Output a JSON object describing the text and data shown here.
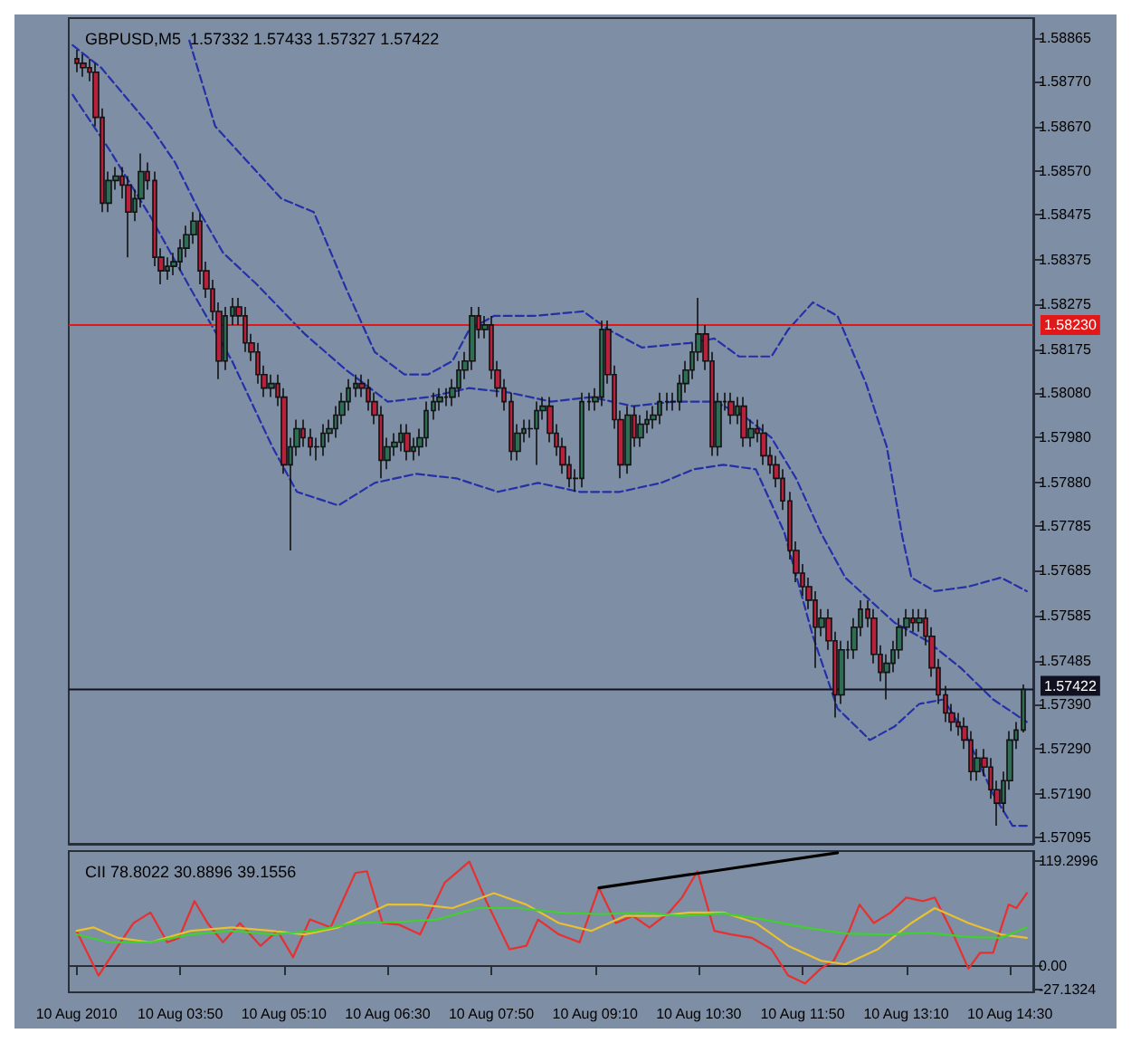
{
  "chart_data": [
    {
      "type": "candlestick",
      "title": "GBPUSD,M5  1.57332 1.57433 1.57327 1.57422",
      "x": [
        "2010-08-10T02:30",
        "2010-08-10T02:35",
        "2010-08-10T02:40",
        "2010-08-10T02:45",
        "2010-08-10T02:50",
        "2010-08-10T02:55",
        "2010-08-10T03:00",
        "2010-08-10T03:05",
        "2010-08-10T03:10",
        "2010-08-10T03:15",
        "2010-08-10T03:20",
        "2010-08-10T03:25",
        "2010-08-10T03:30",
        "2010-08-10T03:35",
        "2010-08-10T03:40",
        "2010-08-10T03:45",
        "2010-08-10T03:50",
        "2010-08-10T03:55",
        "2010-08-10T04:00",
        "2010-08-10T04:05",
        "2010-08-10T04:10",
        "2010-08-10T04:15",
        "2010-08-10T04:20",
        "2010-08-10T04:25",
        "2010-08-10T04:30",
        "2010-08-10T04:35",
        "2010-08-10T04:40",
        "2010-08-10T04:45",
        "2010-08-10T04:50",
        "2010-08-10T04:55",
        "2010-08-10T05:00",
        "2010-08-10T05:05",
        "2010-08-10T05:10",
        "2010-08-10T05:15",
        "2010-08-10T05:20",
        "2010-08-10T05:25",
        "2010-08-10T05:30",
        "2010-08-10T05:35",
        "2010-08-10T05:40",
        "2010-08-10T05:45",
        "2010-08-10T05:50",
        "2010-08-10T05:55",
        "2010-08-10T06:00",
        "2010-08-10T06:05",
        "2010-08-10T06:10",
        "2010-08-10T06:15",
        "2010-08-10T06:20",
        "2010-08-10T06:25",
        "2010-08-10T06:30",
        "2010-08-10T06:35",
        "2010-08-10T06:40",
        "2010-08-10T06:45",
        "2010-08-10T06:50",
        "2010-08-10T06:55",
        "2010-08-10T07:00",
        "2010-08-10T07:05",
        "2010-08-10T07:10",
        "2010-08-10T07:15",
        "2010-08-10T07:20",
        "2010-08-10T07:25",
        "2010-08-10T07:30",
        "2010-08-10T07:35",
        "2010-08-10T07:40",
        "2010-08-10T07:45",
        "2010-08-10T07:50",
        "2010-08-10T07:55",
        "2010-08-10T08:00",
        "2010-08-10T08:05",
        "2010-08-10T08:10",
        "2010-08-10T08:15",
        "2010-08-10T08:20",
        "2010-08-10T08:25",
        "2010-08-10T08:30",
        "2010-08-10T08:35",
        "2010-08-10T08:40",
        "2010-08-10T08:45",
        "2010-08-10T08:50",
        "2010-08-10T08:55",
        "2010-08-10T09:00",
        "2010-08-10T09:05",
        "2010-08-10T09:10",
        "2010-08-10T09:15",
        "2010-08-10T09:20",
        "2010-08-10T09:25",
        "2010-08-10T09:30",
        "2010-08-10T09:35",
        "2010-08-10T09:40",
        "2010-08-10T09:45",
        "2010-08-10T09:50",
        "2010-08-10T09:55",
        "2010-08-10T10:00",
        "2010-08-10T10:05",
        "2010-08-10T10:10",
        "2010-08-10T10:15",
        "2010-08-10T10:20",
        "2010-08-10T10:25",
        "2010-08-10T10:30",
        "2010-08-10T10:35",
        "2010-08-10T10:40",
        "2010-08-10T10:45",
        "2010-08-10T10:50",
        "2010-08-10T10:55",
        "2010-08-10T11:00",
        "2010-08-10T11:05",
        "2010-08-10T11:10",
        "2010-08-10T11:15",
        "2010-08-10T11:20",
        "2010-08-10T11:25",
        "2010-08-10T11:30",
        "2010-08-10T11:35",
        "2010-08-10T11:40",
        "2010-08-10T11:45",
        "2010-08-10T11:50",
        "2010-08-10T11:55",
        "2010-08-10T12:00",
        "2010-08-10T12:05",
        "2010-08-10T12:10",
        "2010-08-10T12:15",
        "2010-08-10T12:20",
        "2010-08-10T12:25",
        "2010-08-10T12:30",
        "2010-08-10T12:35",
        "2010-08-10T12:40",
        "2010-08-10T12:45",
        "2010-08-10T12:50",
        "2010-08-10T12:55",
        "2010-08-10T13:00",
        "2010-08-10T13:05",
        "2010-08-10T13:10",
        "2010-08-10T13:15",
        "2010-08-10T13:20",
        "2010-08-10T13:25",
        "2010-08-10T13:30",
        "2010-08-10T13:35",
        "2010-08-10T13:40",
        "2010-08-10T13:45",
        "2010-08-10T13:50",
        "2010-08-10T13:55",
        "2010-08-10T14:00",
        "2010-08-10T14:05",
        "2010-08-10T14:10",
        "2010-08-10T14:15",
        "2010-08-10T14:20",
        "2010-08-10T14:25",
        "2010-08-10T14:30",
        "2010-08-10T14:35",
        "2010-08-10T14:40"
      ],
      "ohlc": [
        [
          1.5882,
          1.5884,
          1.5879,
          1.5881
        ],
        [
          1.5881,
          1.5883,
          1.5878,
          1.588
        ],
        [
          1.588,
          1.5882,
          1.5877,
          1.5879
        ],
        [
          1.5879,
          1.5881,
          1.5867,
          1.5869
        ],
        [
          1.5869,
          1.5871,
          1.5848,
          1.585
        ],
        [
          1.585,
          1.5857,
          1.5848,
          1.5855
        ],
        [
          1.5855,
          1.5858,
          1.5853,
          1.5856
        ],
        [
          1.5856,
          1.5858,
          1.5851,
          1.5854
        ],
        [
          1.5854,
          1.5856,
          1.5838,
          1.5848
        ],
        [
          1.5848,
          1.5853,
          1.5846,
          1.5851
        ],
        [
          1.5851,
          1.5861,
          1.5849,
          1.5857
        ],
        [
          1.5857,
          1.5859,
          1.5853,
          1.5855
        ],
        [
          1.5855,
          1.5857,
          1.5836,
          1.5838
        ],
        [
          1.5838,
          1.584,
          1.5832,
          1.5835
        ],
        [
          1.5835,
          1.5838,
          1.5833,
          1.5836
        ],
        [
          1.5836,
          1.5839,
          1.5834,
          1.5837
        ],
        [
          1.5837,
          1.5842,
          1.5835,
          1.584
        ],
        [
          1.584,
          1.5845,
          1.5838,
          1.5843
        ],
        [
          1.5843,
          1.5848,
          1.5841,
          1.5846
        ],
        [
          1.5846,
          1.5848,
          1.5832,
          1.5835
        ],
        [
          1.5835,
          1.5837,
          1.5829,
          1.5831
        ],
        [
          1.5831,
          1.5833,
          1.5824,
          1.5826
        ],
        [
          1.5826,
          1.5828,
          1.5811,
          1.5815
        ],
        [
          1.5815,
          1.5827,
          1.5813,
          1.5825
        ],
        [
          1.5825,
          1.5829,
          1.5823,
          1.5827
        ],
        [
          1.5827,
          1.5829,
          1.5823,
          1.5825
        ],
        [
          1.5825,
          1.5827,
          1.5817,
          1.5819
        ],
        [
          1.5819,
          1.5821,
          1.5815,
          1.5817
        ],
        [
          1.5817,
          1.5819,
          1.581,
          1.5812
        ],
        [
          1.5812,
          1.5814,
          1.5807,
          1.5809
        ],
        [
          1.5809,
          1.5812,
          1.5807,
          1.581
        ],
        [
          1.581,
          1.5812,
          1.5805,
          1.5807
        ],
        [
          1.5807,
          1.5809,
          1.579,
          1.5792
        ],
        [
          1.5792,
          1.5798,
          1.5773,
          1.5796
        ],
        [
          1.5796,
          1.5802,
          1.5794,
          1.58
        ],
        [
          1.58,
          1.5802,
          1.5796,
          1.5798
        ],
        [
          1.5798,
          1.58,
          1.5794,
          1.5796
        ],
        [
          1.5796,
          1.5798,
          1.5793,
          1.5796
        ],
        [
          1.5796,
          1.5801,
          1.5794,
          1.5799
        ],
        [
          1.5799,
          1.5802,
          1.5797,
          1.58
        ],
        [
          1.58,
          1.5805,
          1.5798,
          1.5803
        ],
        [
          1.5803,
          1.5808,
          1.5801,
          1.5806
        ],
        [
          1.5806,
          1.5811,
          1.5804,
          1.5809
        ],
        [
          1.5809,
          1.5812,
          1.5807,
          1.581
        ],
        [
          1.581,
          1.5812,
          1.5807,
          1.5809
        ],
        [
          1.5809,
          1.5811,
          1.5804,
          1.5806
        ],
        [
          1.5806,
          1.5808,
          1.5801,
          1.5803
        ],
        [
          1.5803,
          1.5805,
          1.5789,
          1.5793
        ],
        [
          1.5793,
          1.5798,
          1.5791,
          1.5796
        ],
        [
          1.5796,
          1.5799,
          1.5794,
          1.5797
        ],
        [
          1.5797,
          1.5801,
          1.5795,
          1.5799
        ],
        [
          1.5799,
          1.5801,
          1.5793,
          1.5795
        ],
        [
          1.5795,
          1.5798,
          1.5793,
          1.5796
        ],
        [
          1.5796,
          1.58,
          1.5794,
          1.5798
        ],
        [
          1.5798,
          1.5806,
          1.5796,
          1.5804
        ],
        [
          1.5804,
          1.5808,
          1.5802,
          1.5806
        ],
        [
          1.5806,
          1.5809,
          1.5804,
          1.5807
        ],
        [
          1.5807,
          1.5809,
          1.5805,
          1.5807
        ],
        [
          1.5807,
          1.5811,
          1.5805,
          1.5809
        ],
        [
          1.5809,
          1.5815,
          1.5807,
          1.5813
        ],
        [
          1.5813,
          1.5817,
          1.5811,
          1.5815
        ],
        [
          1.5815,
          1.5827,
          1.5813,
          1.5825
        ],
        [
          1.5825,
          1.5827,
          1.582,
          1.5822
        ],
        [
          1.5822,
          1.5825,
          1.582,
          1.5823
        ],
        [
          1.5823,
          1.5825,
          1.5811,
          1.5813
        ],
        [
          1.5813,
          1.5815,
          1.5807,
          1.5809
        ],
        [
          1.5809,
          1.5811,
          1.5804,
          1.5806
        ],
        [
          1.5806,
          1.5808,
          1.5793,
          1.5795
        ],
        [
          1.5795,
          1.5801,
          1.5793,
          1.5799
        ],
        [
          1.5799,
          1.5802,
          1.5797,
          1.58
        ],
        [
          1.58,
          1.5802,
          1.5798,
          1.58
        ],
        [
          1.58,
          1.5806,
          1.5792,
          1.5804
        ],
        [
          1.5804,
          1.5807,
          1.5802,
          1.5805
        ],
        [
          1.5805,
          1.5807,
          1.5797,
          1.5799
        ],
        [
          1.5799,
          1.5801,
          1.5794,
          1.5796
        ],
        [
          1.5796,
          1.5798,
          1.579,
          1.5792
        ],
        [
          1.5792,
          1.5794,
          1.5787,
          1.5789
        ],
        [
          1.5789,
          1.5791,
          1.5786,
          1.5789
        ],
        [
          1.5789,
          1.5808,
          1.5787,
          1.5806
        ],
        [
          1.5806,
          1.5808,
          1.5804,
          1.5806
        ],
        [
          1.5806,
          1.5809,
          1.5804,
          1.5807
        ],
        [
          1.5807,
          1.5824,
          1.5805,
          1.5822
        ],
        [
          1.5822,
          1.5824,
          1.581,
          1.5812
        ],
        [
          1.5812,
          1.5814,
          1.58,
          1.5802
        ],
        [
          1.5802,
          1.5804,
          1.5789,
          1.5792
        ],
        [
          1.5792,
          1.5805,
          1.579,
          1.5803
        ],
        [
          1.5803,
          1.5805,
          1.5796,
          1.5798
        ],
        [
          1.5798,
          1.5803,
          1.5796,
          1.5801
        ],
        [
          1.5801,
          1.5804,
          1.5799,
          1.5802
        ],
        [
          1.5802,
          1.5805,
          1.58,
          1.5803
        ],
        [
          1.5803,
          1.5808,
          1.5801,
          1.5806
        ],
        [
          1.5806,
          1.5808,
          1.5804,
          1.5806
        ],
        [
          1.5806,
          1.5808,
          1.5804,
          1.5806
        ],
        [
          1.5806,
          1.5812,
          1.5804,
          1.581
        ],
        [
          1.581,
          1.5815,
          1.5808,
          1.5813
        ],
        [
          1.5813,
          1.5819,
          1.5811,
          1.5817
        ],
        [
          1.5817,
          1.5829,
          1.5815,
          1.5821
        ],
        [
          1.5821,
          1.5823,
          1.5813,
          1.5815
        ],
        [
          1.5815,
          1.5817,
          1.5794,
          1.5796
        ],
        [
          1.5796,
          1.5808,
          1.5794,
          1.5806
        ],
        [
          1.5806,
          1.5808,
          1.5804,
          1.5806
        ],
        [
          1.5806,
          1.5808,
          1.5801,
          1.5803
        ],
        [
          1.5803,
          1.5807,
          1.5801,
          1.5805
        ],
        [
          1.5805,
          1.5807,
          1.5796,
          1.5798
        ],
        [
          1.5798,
          1.5802,
          1.5796,
          1.58
        ],
        [
          1.58,
          1.5802,
          1.5797,
          1.5799
        ],
        [
          1.5799,
          1.5801,
          1.5792,
          1.5794
        ],
        [
          1.5794,
          1.5796,
          1.579,
          1.5792
        ],
        [
          1.5792,
          1.5794,
          1.5787,
          1.5789
        ],
        [
          1.5789,
          1.5791,
          1.5782,
          1.5784
        ],
        [
          1.5784,
          1.5786,
          1.5771,
          1.5773
        ],
        [
          1.5773,
          1.5775,
          1.5766,
          1.5768
        ],
        [
          1.5768,
          1.577,
          1.5763,
          1.5765
        ],
        [
          1.5765,
          1.5767,
          1.576,
          1.5762
        ],
        [
          1.5762,
          1.5764,
          1.5747,
          1.5756
        ],
        [
          1.5756,
          1.576,
          1.5754,
          1.5758
        ],
        [
          1.5758,
          1.576,
          1.5751,
          1.5753
        ],
        [
          1.5753,
          1.5755,
          1.5736,
          1.5741
        ],
        [
          1.5741,
          1.5753,
          1.5739,
          1.5751
        ],
        [
          1.5751,
          1.5753,
          1.5749,
          1.5751
        ],
        [
          1.5751,
          1.5758,
          1.5749,
          1.5756
        ],
        [
          1.5756,
          1.5762,
          1.5754,
          1.576
        ],
        [
          1.576,
          1.5762,
          1.5756,
          1.5758
        ],
        [
          1.5758,
          1.576,
          1.5748,
          1.575
        ],
        [
          1.575,
          1.5752,
          1.5744,
          1.5746
        ],
        [
          1.5746,
          1.575,
          1.574,
          1.5748
        ],
        [
          1.5748,
          1.5753,
          1.5746,
          1.5751
        ],
        [
          1.5751,
          1.5758,
          1.5749,
          1.5756
        ],
        [
          1.5756,
          1.576,
          1.5754,
          1.5758
        ],
        [
          1.5758,
          1.576,
          1.5755,
          1.5757
        ],
        [
          1.5757,
          1.576,
          1.5755,
          1.5758
        ],
        [
          1.5758,
          1.576,
          1.5752,
          1.5754
        ],
        [
          1.5754,
          1.5756,
          1.5745,
          1.5747
        ],
        [
          1.5747,
          1.5749,
          1.5739,
          1.5741
        ],
        [
          1.5741,
          1.5743,
          1.5735,
          1.5737
        ],
        [
          1.5737,
          1.5739,
          1.5733,
          1.5735
        ],
        [
          1.5735,
          1.5737,
          1.5732,
          1.5734
        ],
        [
          1.5734,
          1.5736,
          1.5729,
          1.5731
        ],
        [
          1.5731,
          1.5733,
          1.5722,
          1.5724
        ],
        [
          1.5724,
          1.5729,
          1.5722,
          1.5727
        ],
        [
          1.5727,
          1.5729,
          1.5723,
          1.5725
        ],
        [
          1.5725,
          1.5727,
          1.5718,
          1.572
        ],
        [
          1.572,
          1.5722,
          1.5712,
          1.5717
        ],
        [
          1.5717,
          1.5724,
          1.5715,
          1.5722
        ],
        [
          1.5722,
          1.5733,
          1.572,
          1.5731
        ],
        [
          1.5731,
          1.5735,
          1.5729,
          1.57332
        ],
        [
          1.57332,
          1.57433,
          1.57327,
          1.57422
        ]
      ],
      "series": [
        {
          "type": "line",
          "color": "#2430a8",
          "line_style": "dashed",
          "x": [
            "2010-08-10T03:57",
            "2010-08-10T04:17",
            "2010-08-10T05:08",
            "2010-08-10T05:33",
            "2010-08-10T05:58",
            "2010-08-10T06:20",
            "2010-08-10T06:43",
            "2010-08-10T07:01",
            "2010-08-10T07:20",
            "2010-08-10T07:33",
            "2010-08-10T07:52",
            "2010-08-10T08:23",
            "2010-08-10T09:01",
            "2010-08-10T09:20",
            "2010-08-10T09:46",
            "2010-08-10T10:23",
            "2010-08-10T10:42",
            "2010-08-10T11:01",
            "2010-08-10T11:26",
            "2010-08-10T11:39",
            "2010-08-10T11:58",
            "2010-08-10T12:17",
            "2010-08-10T12:39",
            "2010-08-10T12:55",
            "2010-08-10T13:07",
            "2010-08-10T13:14",
            "2010-08-10T13:32",
            "2010-08-10T13:58",
            "2010-08-10T14:23",
            "2010-08-10T14:43"
          ],
          "values": [
            1.5886,
            1.5867,
            1.5851,
            1.5848,
            1.5831,
            1.5817,
            1.5812,
            1.5812,
            1.5815,
            1.5822,
            1.5825,
            1.5825,
            1.5826,
            1.5822,
            1.5818,
            1.5819,
            1.582,
            1.5816,
            1.5816,
            1.5822,
            1.5828,
            1.5825,
            1.581,
            1.5796,
            1.5776,
            1.5767,
            1.5764,
            1.5765,
            1.5767,
            1.5764
          ]
        },
        {
          "type": "line",
          "color": "#2430a8",
          "line_style": "dashed",
          "x": [
            "2010-08-10T02:27",
            "2010-08-10T02:49",
            "2010-08-10T03:27",
            "2010-08-10T03:46",
            "2010-08-10T04:05",
            "2010-08-10T04:23",
            "2010-08-10T04:49",
            "2010-08-10T05:26",
            "2010-08-10T05:58",
            "2010-08-10T06:30",
            "2010-08-10T07:01",
            "2010-08-10T07:33",
            "2010-08-10T08:04",
            "2010-08-10T08:36",
            "2010-08-10T09:07",
            "2010-08-10T09:39",
            "2010-08-10T10:11",
            "2010-08-10T10:42",
            "2010-08-10T11:04",
            "2010-08-10T11:26",
            "2010-08-10T11:45",
            "2010-08-10T12:04",
            "2010-08-10T12:23",
            "2010-08-10T12:42",
            "2010-08-10T13:01",
            "2010-08-10T13:26",
            "2010-08-10T13:52",
            "2010-08-10T14:17",
            "2010-08-10T14:43"
          ],
          "values": [
            1.5885,
            1.588,
            1.5867,
            1.5859,
            1.5848,
            1.5839,
            1.5832,
            1.5821,
            1.5813,
            1.5806,
            1.5807,
            1.5809,
            1.5808,
            1.5806,
            1.5807,
            1.5805,
            1.5806,
            1.5806,
            1.5803,
            1.5798,
            1.5789,
            1.5777,
            1.5767,
            1.5762,
            1.5757,
            1.5753,
            1.5747,
            1.574,
            1.5735
          ]
        },
        {
          "type": "line",
          "color": "#2430a8",
          "line_style": "dashed",
          "x": [
            "2010-08-10T02:27",
            "2010-08-10T02:55",
            "2010-08-10T03:27",
            "2010-08-10T03:58",
            "2010-08-10T04:30",
            "2010-08-10T05:01",
            "2010-08-10T05:20",
            "2010-08-10T05:52",
            "2010-08-10T06:20",
            "2010-08-10T06:52",
            "2010-08-10T07:23",
            "2010-08-10T07:55",
            "2010-08-10T08:26",
            "2010-08-10T08:58",
            "2010-08-10T09:29",
            "2010-08-10T10:01",
            "2010-08-10T10:26",
            "2010-08-10T10:49",
            "2010-08-10T11:14",
            "2010-08-10T11:36",
            "2010-08-10T11:58",
            "2010-08-10T12:17",
            "2010-08-10T12:42",
            "2010-08-10T13:01",
            "2010-08-10T13:20",
            "2010-08-10T13:39",
            "2010-08-10T13:58",
            "2010-08-10T14:17",
            "2010-08-10T14:32",
            "2010-08-10T14:43"
          ],
          "values": [
            1.5874,
            1.5862,
            1.5847,
            1.5831,
            1.5815,
            1.5796,
            1.5786,
            1.5783,
            1.5788,
            1.579,
            1.5789,
            1.5786,
            1.5788,
            1.5786,
            1.5786,
            1.5788,
            1.5791,
            1.5792,
            1.5791,
            1.5777,
            1.5754,
            1.5738,
            1.5731,
            1.5734,
            1.5739,
            1.574,
            1.5731,
            1.5719,
            1.5712,
            1.5712
          ]
        }
      ],
      "xlim": [
        "2010-08-10T02:24",
        "2010-08-10T14:48"
      ],
      "ylim": [
        1.5708,
        1.5891
      ],
      "yticks": [
        1.58865,
        {
          "value": 1.5877,
          "label": "1.58770"
        },
        {
          "value": 1.5867,
          "label": "1.58670"
        },
        {
          "value": 1.5857,
          "label": "1.58570"
        },
        1.58475,
        1.58375,
        1.58275,
        1.58175,
        {
          "value": 1.5808,
          "label": "1.58080"
        },
        {
          "value": 1.5798,
          "label": "1.57980"
        },
        {
          "value": 1.5788,
          "label": "1.57880"
        },
        1.57785,
        1.57685,
        1.57585,
        1.57485,
        {
          "value": 1.5739,
          "label": "1.57390"
        },
        {
          "value": 1.5729,
          "label": "1.57290"
        },
        {
          "value": 1.5719,
          "label": "1.57190"
        },
        1.57095
      ],
      "ref_lines": [
        {
          "axis": "y",
          "value": 1.5823,
          "label": "1.58230",
          "color": "#e01818"
        },
        {
          "axis": "y",
          "value": 1.57422,
          "label": "1.57422",
          "color": "#101020"
        }
      ],
      "tick_labels": "y"
    },
    {
      "type": "line",
      "title": "CII 78.8022 30.8896 39.1556",
      "series": [
        {
          "color": "#e83030",
          "x": [
            "2010-08-10T02:30",
            "2010-08-10T02:47",
            "2010-08-10T03:02",
            "2010-08-10T03:14",
            "2010-08-10T03:27",
            "2010-08-10T03:40",
            "2010-08-10T03:49",
            "2010-08-10T04:01",
            "2010-08-10T04:11",
            "2010-08-10T04:23",
            "2010-08-10T04:36",
            "2010-08-10T04:52",
            "2010-08-10T05:05",
            "2010-08-10T05:17",
            "2010-08-10T05:30",
            "2010-08-10T05:46",
            "2010-08-10T06:05",
            "2010-08-10T06:14",
            "2010-08-10T06:26",
            "2010-08-10T06:39",
            "2010-08-10T06:55",
            "2010-08-10T07:14",
            "2010-08-10T07:33",
            "2010-08-10T07:46",
            "2010-08-10T08:04",
            "2010-08-10T08:17",
            "2010-08-10T08:26",
            "2010-08-10T08:42",
            "2010-08-10T08:58",
            "2010-08-10T09:13",
            "2010-08-10T09:26",
            "2010-08-10T09:39",
            "2010-08-10T09:52",
            "2010-08-10T10:07",
            "2010-08-10T10:17",
            "2010-08-10T10:29",
            "2010-08-10T10:42",
            "2010-08-10T10:55",
            "2010-08-10T11:11",
            "2010-08-10T11:26",
            "2010-08-10T11:39",
            "2010-08-10T11:52",
            "2010-08-10T12:04",
            "2010-08-10T12:14",
            "2010-08-10T12:26",
            "2010-08-10T12:34",
            "2010-08-10T12:45",
            "2010-08-10T12:58",
            "2010-08-10T13:10",
            "2010-08-10T13:23",
            "2010-08-10T13:32",
            "2010-08-10T13:45",
            "2010-08-10T13:58",
            "2010-08-10T14:07",
            "2010-08-10T14:17",
            "2010-08-10T14:29",
            "2010-08-10T14:35",
            "2010-08-10T14:43"
          ],
          "values": [
            40,
            -11,
            23,
            49,
            61,
            27,
            32,
            74,
            49,
            27,
            49,
            23,
            40,
            10,
            53,
            44,
            106,
            108,
            49,
            47,
            36,
            95,
            119,
            74,
            19,
            23,
            53,
            36,
            27,
            89,
            49,
            57,
            44,
            61,
            78,
            108,
            40,
            36,
            32,
            19,
            -11,
            -20,
            -3,
            6,
            40,
            70,
            49,
            61,
            78,
            74,
            78,
            40,
            -3,
            15,
            15,
            70,
            66,
            83
          ]
        },
        {
          "color": "#e8c030",
          "x": [
            "2010-08-10T02:30",
            "2010-08-10T02:43",
            "2010-08-10T03:02",
            "2010-08-10T03:27",
            "2010-08-10T03:58",
            "2010-08-10T04:30",
            "2010-08-10T05:01",
            "2010-08-10T05:26",
            "2010-08-10T05:52",
            "2010-08-10T06:30",
            "2010-08-10T06:55",
            "2010-08-10T07:20",
            "2010-08-10T07:52",
            "2010-08-10T08:17",
            "2010-08-10T08:42",
            "2010-08-10T09:07",
            "2010-08-10T09:33",
            "2010-08-10T09:58",
            "2010-08-10T10:23",
            "2010-08-10T10:49",
            "2010-08-10T11:14",
            "2010-08-10T11:39",
            "2010-08-10T12:04",
            "2010-08-10T12:23",
            "2010-08-10T12:48",
            "2010-08-10T13:14",
            "2010-08-10T13:32",
            "2010-08-10T13:58",
            "2010-08-10T14:23",
            "2010-08-10T14:43"
          ],
          "values": [
            40,
            44,
            32,
            27,
            40,
            44,
            40,
            36,
            44,
            70,
            70,
            66,
            83,
            70,
            49,
            40,
            57,
            57,
            61,
            61,
            49,
            23,
            6,
            2,
            19,
            49,
            66,
            49,
            36,
            32
          ]
        },
        {
          "color": "#40d030",
          "x": [
            "2010-08-10T02:30",
            "2010-08-10T02:55",
            "2010-08-10T03:27",
            "2010-08-10T03:58",
            "2010-08-10T04:30",
            "2010-08-10T05:01",
            "2010-08-10T05:33",
            "2010-08-10T06:05",
            "2010-08-10T06:36",
            "2010-08-10T07:08",
            "2010-08-10T07:39",
            "2010-08-10T08:11",
            "2010-08-10T08:42",
            "2010-08-10T09:14",
            "2010-08-10T09:46",
            "2010-08-10T10:17",
            "2010-08-10T10:49",
            "2010-08-10T11:20",
            "2010-08-10T11:52",
            "2010-08-10T12:23",
            "2010-08-10T12:55",
            "2010-08-10T13:26",
            "2010-08-10T13:58",
            "2010-08-10T14:23",
            "2010-08-10T14:43"
          ],
          "values": [
            36,
            27,
            27,
            36,
            40,
            36,
            40,
            49,
            50,
            53,
            66,
            66,
            61,
            59,
            61,
            57,
            60,
            53,
            44,
            37,
            36,
            38,
            33,
            32,
            44
          ]
        },
        {
          "color": "#000000",
          "x": [
            "2010-08-10T09:13",
            "2010-08-10T12:17"
          ],
          "values": [
            89,
            129
          ]
        }
      ],
      "xlim": [
        "2010-08-10T02:24",
        "2010-08-10T14:48"
      ],
      "ylim": [
        -30,
        131
      ],
      "xticks": [
        {
          "value": "2010-08-10T02:30",
          "label": "10 Aug 2010"
        },
        {
          "value": "2010-08-10T03:50",
          "label": "10 Aug 03:50"
        },
        {
          "value": "2010-08-10T05:10",
          "label": "10 Aug 05:10"
        },
        {
          "value": "2010-08-10T06:30",
          "label": "10 Aug 06:30"
        },
        {
          "value": "2010-08-10T07:50",
          "label": "10 Aug 07:50"
        },
        {
          "value": "2010-08-10T09:10",
          "label": "10 Aug 09:10"
        },
        {
          "value": "2010-08-10T10:30",
          "label": "10 Aug 10:30"
        },
        {
          "value": "2010-08-10T11:50",
          "label": "10 Aug 11:50"
        },
        {
          "value": "2010-08-10T13:10",
          "label": "10 Aug 13:10"
        },
        {
          "value": "2010-08-10T14:30",
          "label": "10 Aug 14:30"
        }
      ],
      "yticks": [
        119.2996,
        {
          "value": 0,
          "label": "0.00"
        },
        -27.1324
      ]
    }
  ]
}
